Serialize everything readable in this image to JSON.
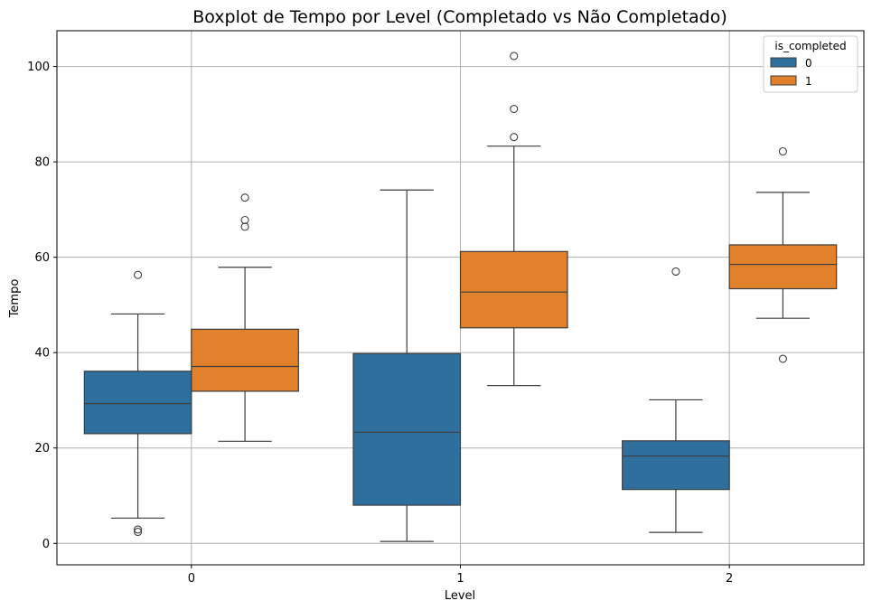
{
  "chart_data": {
    "type": "boxplot",
    "title": "Boxplot de Tempo por Level (Completado vs Não Completado)",
    "xlabel": "Level",
    "ylabel": "Tempo",
    "categories": [
      "0",
      "1",
      "2"
    ],
    "ylim": [
      -4.5,
      107.5
    ],
    "yticks": [
      0,
      20,
      40,
      60,
      80,
      100
    ],
    "grid": true,
    "legend": {
      "title": "is_completed",
      "position": "top-right",
      "entries": [
        "0",
        "1"
      ]
    },
    "series": [
      {
        "name": "0",
        "color": "#2e6f9e",
        "boxes": [
          {
            "category": "0",
            "whislo": 5.3,
            "q1": 23.0,
            "med": 29.3,
            "q3": 36.1,
            "whishi": 48.1,
            "fliers": [
              56.3,
              2.9,
              2.4
            ]
          },
          {
            "category": "1",
            "whislo": 0.4,
            "q1": 8.0,
            "med": 23.3,
            "q3": 39.8,
            "whishi": 74.1,
            "fliers": []
          },
          {
            "category": "2",
            "whislo": 2.3,
            "q1": 11.3,
            "med": 18.3,
            "q3": 21.5,
            "whishi": 30.1,
            "fliers": [
              57.0
            ]
          }
        ]
      },
      {
        "name": "1",
        "color": "#e1812c",
        "boxes": [
          {
            "category": "0",
            "whislo": 21.4,
            "q1": 31.9,
            "med": 37.1,
            "q3": 44.9,
            "whishi": 57.9,
            "fliers": [
              72.5,
              67.8,
              66.4
            ]
          },
          {
            "category": "1",
            "whislo": 33.1,
            "q1": 45.2,
            "med": 52.7,
            "q3": 61.2,
            "whishi": 83.3,
            "fliers": [
              102.2,
              91.1,
              85.2
            ]
          },
          {
            "category": "2",
            "whislo": 47.2,
            "q1": 53.4,
            "med": 58.5,
            "q3": 62.6,
            "whishi": 73.6,
            "fliers": [
              82.2,
              38.7
            ]
          }
        ]
      }
    ]
  }
}
